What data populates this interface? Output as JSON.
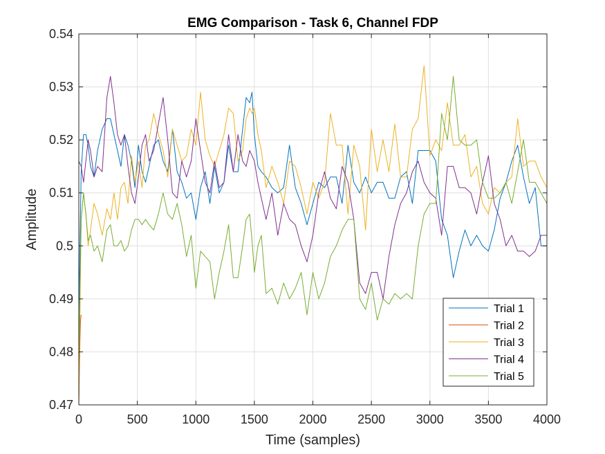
{
  "chart_data": {
    "type": "line",
    "title": "EMG Comparison - Task 6, Channel FDP",
    "xlabel": "Time (samples)",
    "ylabel": "Amplitude",
    "xlim": [
      0,
      4000
    ],
    "ylim": [
      0.47,
      0.54
    ],
    "xticks": [
      0,
      500,
      1000,
      1500,
      2000,
      2500,
      3000,
      3500,
      4000
    ],
    "yticks": [
      0.47,
      0.48,
      0.49,
      0.5,
      0.51,
      0.52,
      0.53,
      0.54
    ],
    "xtick_labels": [
      "0",
      "500",
      "1000",
      "1500",
      "2000",
      "2500",
      "3000",
      "3500",
      "4000"
    ],
    "ytick_labels": [
      "0.47",
      "0.48",
      "0.49",
      "0.5",
      "0.51",
      "0.52",
      "0.53",
      "0.54"
    ],
    "grid": true,
    "legend_location": "bottom-right",
    "series": [
      {
        "name": "Trial 1",
        "color": "#0072BD",
        "x": [
          0,
          20,
          40,
          60,
          80,
          100,
          130,
          160,
          200,
          240,
          270,
          300,
          330,
          360,
          390,
          420,
          450,
          480,
          510,
          540,
          570,
          600,
          640,
          680,
          720,
          760,
          800,
          840,
          880,
          920,
          960,
          1000,
          1040,
          1080,
          1120,
          1160,
          1200,
          1240,
          1280,
          1320,
          1360,
          1400,
          1430,
          1460,
          1480,
          1500,
          1530,
          1560,
          1600,
          1650,
          1700,
          1750,
          1800,
          1850,
          1900,
          1950,
          2000,
          2050,
          2100,
          2150,
          2200,
          2250,
          2300,
          2350,
          2400,
          2450,
          2500,
          2550,
          2600,
          2650,
          2700,
          2750,
          2800,
          2850,
          2900,
          2950,
          3000,
          3050,
          3100,
          3150,
          3200,
          3250,
          3300,
          3350,
          3400,
          3450,
          3500,
          3550,
          3600,
          3650,
          3700,
          3750,
          3800,
          3850,
          3900,
          3950,
          4000
        ],
        "y": [
          0.487,
          0.514,
          0.521,
          0.521,
          0.519,
          0.515,
          0.513,
          0.518,
          0.522,
          0.524,
          0.524,
          0.521,
          0.518,
          0.515,
          0.521,
          0.519,
          0.516,
          0.511,
          0.519,
          0.514,
          0.512,
          0.515,
          0.519,
          0.52,
          0.516,
          0.514,
          0.522,
          0.514,
          0.512,
          0.509,
          0.51,
          0.505,
          0.511,
          0.514,
          0.508,
          0.515,
          0.51,
          0.512,
          0.519,
          0.514,
          0.514,
          0.522,
          0.528,
          0.527,
          0.529,
          0.521,
          0.515,
          0.514,
          0.513,
          0.511,
          0.51,
          0.511,
          0.519,
          0.511,
          0.508,
          0.504,
          0.508,
          0.512,
          0.511,
          0.513,
          0.513,
          0.508,
          0.519,
          0.512,
          0.51,
          0.513,
          0.51,
          0.512,
          0.512,
          0.509,
          0.509,
          0.513,
          0.514,
          0.508,
          0.518,
          0.518,
          0.518,
          0.516,
          0.505,
          0.502,
          0.494,
          0.499,
          0.503,
          0.5,
          0.502,
          0.5,
          0.499,
          0.503,
          0.509,
          0.512,
          0.516,
          0.519,
          0.513,
          0.508,
          0.511,
          0.5,
          0.5
        ]
      },
      {
        "name": "Trial 2",
        "color": "#D95319",
        "x": [
          0,
          5,
          10,
          15,
          20
        ],
        "y": [
          0.47,
          0.476,
          0.482,
          0.486,
          0.487
        ]
      },
      {
        "name": "Trial 3",
        "color": "#EDB120",
        "x": [
          0,
          20,
          40,
          60,
          80,
          100,
          130,
          160,
          200,
          240,
          270,
          300,
          330,
          360,
          390,
          420,
          450,
          480,
          510,
          540,
          570,
          600,
          640,
          680,
          720,
          760,
          800,
          840,
          880,
          920,
          960,
          1000,
          1040,
          1080,
          1120,
          1160,
          1200,
          1240,
          1280,
          1320,
          1360,
          1400,
          1430,
          1460,
          1480,
          1500,
          1530,
          1560,
          1600,
          1650,
          1700,
          1750,
          1800,
          1850,
          1900,
          1950,
          2000,
          2050,
          2100,
          2150,
          2200,
          2250,
          2300,
          2350,
          2400,
          2450,
          2500,
          2550,
          2600,
          2650,
          2700,
          2750,
          2800,
          2850,
          2900,
          2950,
          3000,
          3050,
          3100,
          3150,
          3200,
          3250,
          3300,
          3350,
          3400,
          3450,
          3500,
          3550,
          3600,
          3650,
          3700,
          3750,
          3800,
          3850,
          3900,
          3950,
          4000
        ],
        "y": [
          0.47,
          0.505,
          0.51,
          0.506,
          0.5,
          0.503,
          0.508,
          0.506,
          0.502,
          0.507,
          0.505,
          0.51,
          0.505,
          0.511,
          0.512,
          0.508,
          0.517,
          0.512,
          0.516,
          0.511,
          0.519,
          0.52,
          0.525,
          0.521,
          0.518,
          0.513,
          0.522,
          0.519,
          0.516,
          0.517,
          0.522,
          0.519,
          0.529,
          0.52,
          0.517,
          0.515,
          0.518,
          0.521,
          0.526,
          0.525,
          0.516,
          0.518,
          0.524,
          0.526,
          0.525,
          0.526,
          0.521,
          0.518,
          0.511,
          0.515,
          0.512,
          0.508,
          0.516,
          0.515,
          0.511,
          0.506,
          0.512,
          0.509,
          0.512,
          0.525,
          0.519,
          0.519,
          0.506,
          0.519,
          0.515,
          0.503,
          0.522,
          0.514,
          0.52,
          0.514,
          0.523,
          0.513,
          0.513,
          0.522,
          0.524,
          0.534,
          0.517,
          0.52,
          0.518,
          0.527,
          0.519,
          0.519,
          0.521,
          0.513,
          0.515,
          0.508,
          0.506,
          0.511,
          0.51,
          0.512,
          0.513,
          0.524,
          0.515,
          0.516,
          0.516,
          0.513,
          0.511
        ]
      },
      {
        "name": "Trial 4",
        "color": "#7E2F8E",
        "x": [
          0,
          20,
          40,
          60,
          80,
          100,
          130,
          160,
          200,
          240,
          270,
          300,
          330,
          360,
          390,
          420,
          450,
          480,
          510,
          540,
          570,
          600,
          640,
          680,
          720,
          760,
          800,
          840,
          880,
          920,
          960,
          1000,
          1040,
          1080,
          1120,
          1160,
          1200,
          1240,
          1280,
          1320,
          1360,
          1400,
          1430,
          1460,
          1480,
          1500,
          1530,
          1560,
          1600,
          1650,
          1700,
          1750,
          1800,
          1850,
          1900,
          1950,
          2000,
          2050,
          2100,
          2150,
          2200,
          2250,
          2300,
          2350,
          2400,
          2450,
          2500,
          2550,
          2600,
          2650,
          2700,
          2750,
          2800,
          2850,
          2900,
          2950,
          3000,
          3050,
          3100,
          3150,
          3200,
          3250,
          3300,
          3350,
          3400,
          3450,
          3500,
          3550,
          3600,
          3650,
          3700,
          3750,
          3800,
          3850,
          3900,
          3950,
          4000
        ],
        "y": [
          0.516,
          0.515,
          0.512,
          0.516,
          0.52,
          0.518,
          0.513,
          0.515,
          0.514,
          0.528,
          0.532,
          0.527,
          0.521,
          0.519,
          0.521,
          0.515,
          0.51,
          0.508,
          0.513,
          0.519,
          0.521,
          0.516,
          0.518,
          0.523,
          0.528,
          0.52,
          0.51,
          0.509,
          0.516,
          0.513,
          0.516,
          0.524,
          0.518,
          0.512,
          0.51,
          0.516,
          0.511,
          0.512,
          0.521,
          0.514,
          0.521,
          0.516,
          0.515,
          0.518,
          0.517,
          0.516,
          0.512,
          0.509,
          0.505,
          0.51,
          0.502,
          0.508,
          0.505,
          0.504,
          0.5,
          0.497,
          0.502,
          0.51,
          0.514,
          0.509,
          0.507,
          0.515,
          0.512,
          0.505,
          0.493,
          0.491,
          0.495,
          0.495,
          0.49,
          0.498,
          0.504,
          0.508,
          0.51,
          0.514,
          0.516,
          0.512,
          0.51,
          0.509,
          0.502,
          0.515,
          0.515,
          0.511,
          0.511,
          0.51,
          0.506,
          0.512,
          0.517,
          0.508,
          0.505,
          0.5,
          0.502,
          0.499,
          0.499,
          0.498,
          0.499,
          0.502,
          0.502
        ]
      },
      {
        "name": "Trial 5",
        "color": "#77AC30",
        "x": [
          0,
          20,
          40,
          60,
          80,
          100,
          130,
          160,
          200,
          240,
          270,
          300,
          330,
          360,
          390,
          420,
          450,
          480,
          510,
          540,
          570,
          600,
          640,
          680,
          720,
          760,
          800,
          840,
          880,
          920,
          960,
          1000,
          1040,
          1080,
          1120,
          1160,
          1200,
          1240,
          1280,
          1320,
          1360,
          1400,
          1430,
          1460,
          1480,
          1500,
          1530,
          1560,
          1600,
          1650,
          1700,
          1750,
          1800,
          1850,
          1900,
          1950,
          2000,
          2050,
          2100,
          2150,
          2200,
          2250,
          2300,
          2350,
          2400,
          2450,
          2500,
          2550,
          2600,
          2650,
          2700,
          2750,
          2800,
          2850,
          2900,
          2950,
          3000,
          3050,
          3100,
          3150,
          3200,
          3250,
          3300,
          3350,
          3400,
          3450,
          3500,
          3550,
          3600,
          3650,
          3700,
          3750,
          3800,
          3850,
          3900,
          3950,
          4000
        ],
        "y": [
          0.478,
          0.505,
          0.51,
          0.506,
          0.501,
          0.502,
          0.499,
          0.5,
          0.497,
          0.503,
          0.504,
          0.5,
          0.5,
          0.501,
          0.499,
          0.5,
          0.503,
          0.505,
          0.505,
          0.504,
          0.505,
          0.504,
          0.503,
          0.506,
          0.51,
          0.506,
          0.505,
          0.508,
          0.504,
          0.498,
          0.502,
          0.492,
          0.499,
          0.498,
          0.497,
          0.49,
          0.495,
          0.499,
          0.504,
          0.494,
          0.494,
          0.5,
          0.505,
          0.506,
          0.501,
          0.495,
          0.5,
          0.502,
          0.491,
          0.492,
          0.489,
          0.493,
          0.49,
          0.492,
          0.495,
          0.487,
          0.495,
          0.49,
          0.493,
          0.498,
          0.5,
          0.503,
          0.505,
          0.505,
          0.49,
          0.488,
          0.493,
          0.486,
          0.49,
          0.489,
          0.491,
          0.49,
          0.491,
          0.49,
          0.5,
          0.506,
          0.508,
          0.508,
          0.525,
          0.52,
          0.532,
          0.52,
          0.519,
          0.519,
          0.52,
          0.512,
          0.509,
          0.509,
          0.51,
          0.512,
          0.508,
          0.514,
          0.52,
          0.512,
          0.512,
          0.51,
          0.508
        ]
      }
    ]
  }
}
